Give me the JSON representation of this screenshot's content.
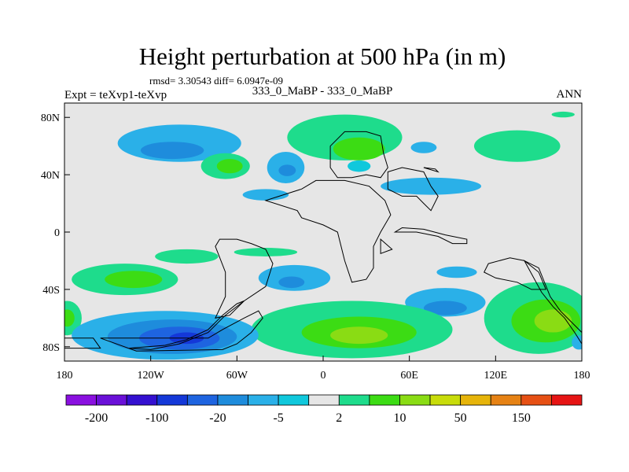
{
  "title": "Height perturbation at 500 hPa (in m)",
  "stats_text": "rmsd= 3.30543 diff= 6.0947e-09",
  "left_label": "Expt = teXvp1-teXvp",
  "center_label": "333_0_MaBP - 333_0_MaBP",
  "right_label": "ANN",
  "chart_data": {
    "type": "heatmap",
    "title": "Height perturbation at 500 hPa (in m)",
    "xlim": [
      -180,
      180
    ],
    "ylim": [
      -90,
      90
    ],
    "x_ticks": [
      {
        "value": -180,
        "label": "180"
      },
      {
        "value": -120,
        "label": "120W"
      },
      {
        "value": -60,
        "label": "60W"
      },
      {
        "value": 0,
        "label": "0"
      },
      {
        "value": 60,
        "label": "60E"
      },
      {
        "value": 120,
        "label": "120E"
      },
      {
        "value": 180,
        "label": "180"
      }
    ],
    "y_ticks": [
      {
        "value": 80,
        "label": "80N"
      },
      {
        "value": 40,
        "label": "40N"
      },
      {
        "value": 0,
        "label": "0"
      },
      {
        "value": -40,
        "label": "40S"
      },
      {
        "value": -80,
        "label": "80S"
      }
    ],
    "colorbar": {
      "colors": [
        "#8a10e0",
        "#6a10d8",
        "#3410d0",
        "#1438d8",
        "#1e64e0",
        "#1e8cdc",
        "#2ab0e8",
        "#10c8dc",
        "#e6e6e6",
        "#1edc8c",
        "#3cdc14",
        "#8adc14",
        "#c8dc0a",
        "#e6b40a",
        "#e68214",
        "#e65014",
        "#e61414"
      ],
      "labels": [
        {
          "boundary": 0,
          "label": "-200"
        },
        {
          "boundary": 2,
          "label": "-100"
        },
        {
          "boundary": 4,
          "label": "-20"
        },
        {
          "boundary": 6,
          "label": "-5"
        },
        {
          "boundary": 8,
          "label": "2"
        },
        {
          "boundary": 10,
          "label": "10"
        },
        {
          "boundary": 12,
          "label": "50"
        },
        {
          "boundary": 14,
          "label": "150"
        }
      ]
    },
    "background_color": "#e6e6e6",
    "features": [
      {
        "lon": -100,
        "lat": 62,
        "rlon": 43,
        "rlat": 13,
        "color": "#2ab0e8"
      },
      {
        "lon": -105,
        "lat": 57,
        "rlon": 22,
        "rlat": 6,
        "color": "#1e8cdc"
      },
      {
        "lon": -68,
        "lat": 46,
        "rlon": 17,
        "rlat": 9,
        "color": "#1edc8c"
      },
      {
        "lon": -65,
        "lat": 46,
        "rlon": 9,
        "rlat": 5,
        "color": "#3cdc14"
      },
      {
        "lon": -26,
        "lat": 45,
        "rlon": 13,
        "rlat": 11,
        "color": "#2ab0e8"
      },
      {
        "lon": -25,
        "lat": 43,
        "rlon": 6,
        "rlat": 4,
        "color": "#1e8cdc"
      },
      {
        "lon": -40,
        "lat": 26,
        "rlon": 16,
        "rlat": 4,
        "color": "#2ab0e8"
      },
      {
        "lon": 15,
        "lat": 66,
        "rlon": 40,
        "rlat": 16,
        "color": "#1edc8c"
      },
      {
        "lon": 25,
        "lat": 58,
        "rlon": 18,
        "rlat": 8,
        "color": "#3cdc14"
      },
      {
        "lon": 25,
        "lat": 46,
        "rlon": 8,
        "rlat": 4,
        "color": "#10c8dc"
      },
      {
        "lon": 70,
        "lat": 59,
        "rlon": 9,
        "rlat": 4,
        "color": "#2ab0e8"
      },
      {
        "lon": 75,
        "lat": 32,
        "rlon": 35,
        "rlat": 6,
        "color": "#2ab0e8"
      },
      {
        "lon": 135,
        "lat": 60,
        "rlon": 30,
        "rlat": 11,
        "color": "#1edc8c"
      },
      {
        "lon": 167,
        "lat": 82,
        "rlon": 8,
        "rlat": 2,
        "color": "#1edc8c"
      },
      {
        "lon": -95,
        "lat": -17,
        "rlon": 22,
        "rlat": 5,
        "color": "#1edc8c"
      },
      {
        "lon": -40,
        "lat": -14,
        "rlon": 22,
        "rlat": 3,
        "color": "#1edc8c"
      },
      {
        "lon": -138,
        "lat": -33,
        "rlon": 37,
        "rlat": 11,
        "color": "#1edc8c"
      },
      {
        "lon": -132,
        "lat": -33,
        "rlon": 20,
        "rlat": 6,
        "color": "#3cdc14"
      },
      {
        "lon": -20,
        "lat": -32,
        "rlon": 25,
        "rlat": 9,
        "color": "#2ab0e8"
      },
      {
        "lon": -22,
        "lat": -35,
        "rlon": 9,
        "rlat": 4,
        "color": "#1e8cdc"
      },
      {
        "lon": 93,
        "lat": -28,
        "rlon": 14,
        "rlat": 4,
        "color": "#2ab0e8"
      },
      {
        "lon": 85,
        "lat": -49,
        "rlon": 28,
        "rlat": 10,
        "color": "#2ab0e8"
      },
      {
        "lon": 85,
        "lat": -53,
        "rlon": 15,
        "rlat": 5,
        "color": "#1e8cdc"
      },
      {
        "lon": 150,
        "lat": -60,
        "rlon": 38,
        "rlat": 25,
        "color": "#1edc8c"
      },
      {
        "lon": 155,
        "lat": -62,
        "rlon": 24,
        "rlat": 15,
        "color": "#3cdc14"
      },
      {
        "lon": 160,
        "lat": -62,
        "rlon": 13,
        "rlat": 8,
        "color": "#8adc14"
      },
      {
        "lon": -178,
        "lat": -60,
        "rlon": 10,
        "rlat": 12,
        "color": "#1edc8c"
      },
      {
        "lon": -178,
        "lat": -60,
        "rlon": 5,
        "rlat": 6,
        "color": "#3cdc14"
      },
      {
        "lon": 178,
        "lat": -77,
        "rlon": 5,
        "rlat": 5,
        "color": "#2ab0e8"
      },
      {
        "lon": 20,
        "lat": -68,
        "rlon": 70,
        "rlat": 20,
        "color": "#1edc8c"
      },
      {
        "lon": 25,
        "lat": -70,
        "rlon": 40,
        "rlat": 11,
        "color": "#3cdc14"
      },
      {
        "lon": 25,
        "lat": -72,
        "rlon": 20,
        "rlat": 6,
        "color": "#8adc14"
      },
      {
        "lon": -110,
        "lat": -72,
        "rlon": 65,
        "rlat": 17,
        "color": "#2ab0e8"
      },
      {
        "lon": -105,
        "lat": -73,
        "rlon": 45,
        "rlat": 12,
        "color": "#1e8cdc"
      },
      {
        "lon": -100,
        "lat": -74,
        "rlon": 28,
        "rlat": 8,
        "color": "#1e64e0"
      },
      {
        "lon": -95,
        "lat": -74,
        "rlon": 12,
        "rlat": 4,
        "color": "#1438d8"
      }
    ],
    "land_outlines": [
      [
        [
          -155,
          -74
        ],
        [
          -80,
          -74
        ],
        [
          -70,
          -68
        ],
        [
          -55,
          -60
        ],
        [
          -45,
          -55
        ],
        [
          -42,
          -60
        ],
        [
          -50,
          -70
        ],
        [
          -60,
          -78
        ],
        [
          -70,
          -82
        ],
        [
          -130,
          -83
        ]
      ],
      [
        [
          -135,
          -81
        ],
        [
          -110,
          -79
        ],
        [
          -95,
          -75
        ],
        [
          -80,
          -68
        ],
        [
          -70,
          -58
        ],
        [
          -60,
          -50
        ],
        [
          -55,
          -48
        ],
        [
          -68,
          -58
        ],
        [
          -80,
          -70
        ],
        [
          -100,
          -78
        ],
        [
          -120,
          -82
        ]
      ],
      [
        [
          -180,
          -74
        ],
        [
          -160,
          -74
        ],
        [
          -155,
          -81
        ],
        [
          -180,
          -81
        ]
      ],
      [
        [
          -60,
          -5
        ],
        [
          -50,
          -8
        ],
        [
          -40,
          -12
        ],
        [
          -35,
          -22
        ],
        [
          -40,
          -38
        ],
        [
          -55,
          -48
        ],
        [
          -65,
          -58
        ],
        [
          -75,
          -60
        ],
        [
          -68,
          -45
        ],
        [
          -68,
          -28
        ],
        [
          -75,
          -10
        ],
        [
          -72,
          -5
        ]
      ],
      [
        [
          -40,
          22
        ],
        [
          -15,
          30
        ],
        [
          -5,
          36
        ],
        [
          15,
          36
        ],
        [
          32,
          32
        ],
        [
          43,
          22
        ],
        [
          47,
          12
        ],
        [
          40,
          0
        ],
        [
          35,
          -10
        ],
        [
          35,
          -25
        ],
        [
          30,
          -33
        ],
        [
          20,
          -35
        ],
        [
          15,
          -20
        ],
        [
          10,
          0
        ],
        [
          0,
          5
        ],
        [
          -15,
          10
        ],
        [
          -18,
          15
        ]
      ],
      [
        [
          5,
          45
        ],
        [
          5,
          60
        ],
        [
          15,
          70
        ],
        [
          30,
          70
        ],
        [
          40,
          67
        ],
        [
          42,
          55
        ],
        [
          45,
          45
        ],
        [
          40,
          38
        ],
        [
          30,
          40
        ],
        [
          20,
          38
        ],
        [
          10,
          38
        ]
      ],
      [
        [
          45,
          42
        ],
        [
          55,
          45
        ],
        [
          70,
          42
        ],
        [
          75,
          32
        ],
        [
          80,
          25
        ],
        [
          75,
          15
        ],
        [
          70,
          20
        ],
        [
          65,
          25
        ],
        [
          55,
          25
        ],
        [
          45,
          30
        ]
      ],
      [
        [
          50,
          0
        ],
        [
          65,
          0
        ],
        [
          80,
          -3
        ],
        [
          90,
          -8
        ],
        [
          100,
          -8
        ],
        [
          100,
          -5
        ],
        [
          85,
          -2
        ],
        [
          70,
          2
        ],
        [
          55,
          3
        ]
      ],
      [
        [
          40,
          -5
        ],
        [
          40,
          -15
        ],
        [
          48,
          -12
        ]
      ],
      [
        [
          70,
          45
        ],
        [
          80,
          42
        ],
        [
          78,
          44
        ]
      ],
      [
        [
          115,
          -22
        ],
        [
          130,
          -18
        ],
        [
          140,
          -20
        ],
        [
          150,
          -28
        ],
        [
          155,
          -40
        ],
        [
          145,
          -40
        ],
        [
          135,
          -35
        ],
        [
          120,
          -32
        ],
        [
          112,
          -28
        ]
      ],
      [
        [
          140,
          -20
        ],
        [
          150,
          -25
        ],
        [
          158,
          -45
        ],
        [
          165,
          -55
        ],
        [
          180,
          -70
        ],
        [
          180,
          -78
        ],
        [
          175,
          -70
        ],
        [
          168,
          -60
        ],
        [
          160,
          -52
        ],
        [
          152,
          -42
        ]
      ]
    ]
  }
}
